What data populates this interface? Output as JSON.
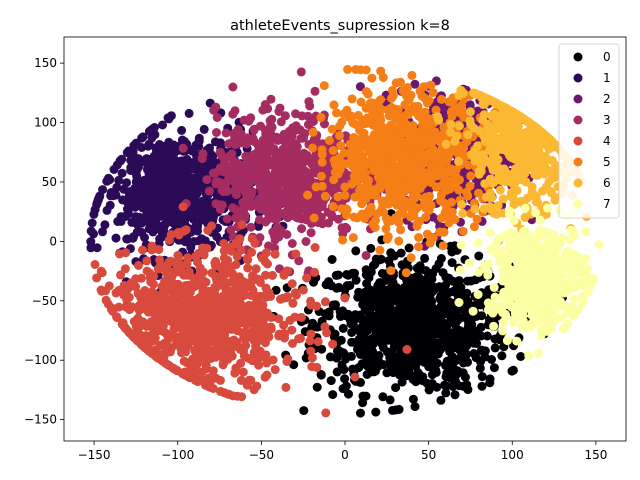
{
  "chart_data": {
    "type": "scatter",
    "title": "athleteEvents_supression k=8",
    "xlabel": "",
    "ylabel": "",
    "xlim": [
      -168,
      168
    ],
    "ylim": [
      -168,
      172
    ],
    "x_ticks": [
      -150,
      -100,
      -50,
      0,
      50,
      100,
      150
    ],
    "y_ticks": [
      -150,
      -100,
      -50,
      0,
      50,
      100,
      150
    ],
    "grid": false,
    "legend_position": "top-right",
    "series": [
      {
        "name": "0",
        "color": "#000004",
        "center": [
          40,
          -70
        ],
        "spread": [
          38,
          38
        ],
        "count": 900
      },
      {
        "name": "1",
        "color": "#2b0b57",
        "center": [
          -100,
          40
        ],
        "spread": [
          30,
          35
        ],
        "count": 700
      },
      {
        "name": "2",
        "color": "#6b186e",
        "center": [
          65,
          75
        ],
        "spread": [
          22,
          35
        ],
        "count": 500
      },
      {
        "name": "3",
        "color": "#a52c60",
        "center": [
          -35,
          55
        ],
        "spread": [
          28,
          35
        ],
        "count": 700
      },
      {
        "name": "4",
        "color": "#d84a3d",
        "center": [
          -85,
          -65
        ],
        "spread": [
          38,
          38
        ],
        "count": 900
      },
      {
        "name": "5",
        "color": "#f57e16",
        "center": [
          35,
          70
        ],
        "spread": [
          30,
          38
        ],
        "count": 800
      },
      {
        "name": "6",
        "color": "#fbb832",
        "center": [
          105,
          80
        ],
        "spread": [
          22,
          38
        ],
        "count": 500
      },
      {
        "name": "7",
        "color": "#fcffa4",
        "center": [
          115,
          -30
        ],
        "spread": [
          20,
          30
        ],
        "count": 500
      }
    ]
  }
}
